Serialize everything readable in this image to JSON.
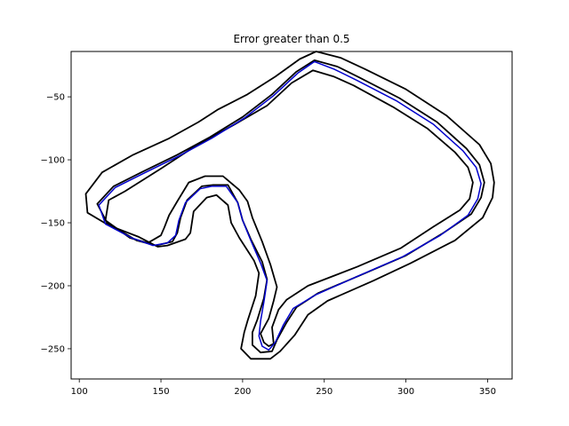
{
  "chart_data": {
    "type": "line",
    "title": "Error greater than 0.5",
    "xlabel": "",
    "ylabel": "",
    "xlim": [
      95,
      365
    ],
    "ylim": [
      -274,
      -14
    ],
    "x_ticks": [
      100,
      150,
      200,
      250,
      300,
      350
    ],
    "y_ticks": [
      -50,
      -100,
      -150,
      -200,
      -250
    ],
    "grid": false,
    "legend": "none",
    "series": [
      {
        "role": "track-outer-boundary",
        "color": "#000000",
        "closed": true,
        "points": [
          [
            245,
            -14
          ],
          [
            260,
            -19
          ],
          [
            275,
            -28
          ],
          [
            300,
            -44
          ],
          [
            325,
            -65
          ],
          [
            345,
            -88
          ],
          [
            352,
            -103
          ],
          [
            354,
            -118
          ],
          [
            353,
            -130
          ],
          [
            347,
            -146
          ],
          [
            330,
            -164
          ],
          [
            303,
            -182
          ],
          [
            280,
            -196
          ],
          [
            252,
            -212
          ],
          [
            240,
            -223
          ],
          [
            232,
            -239
          ],
          [
            223,
            -252
          ],
          [
            217,
            -258
          ],
          [
            205,
            -258
          ],
          [
            199,
            -250
          ],
          [
            201,
            -237
          ],
          [
            203,
            -228
          ],
          [
            208,
            -208
          ],
          [
            210,
            -190
          ],
          [
            207,
            -180
          ],
          [
            198,
            -162
          ],
          [
            193,
            -150
          ],
          [
            191,
            -136
          ],
          [
            184,
            -128
          ],
          [
            178,
            -130
          ],
          [
            170,
            -141
          ],
          [
            168,
            -158
          ],
          [
            165,
            -163
          ],
          [
            154,
            -168
          ],
          [
            148,
            -169
          ],
          [
            136,
            -161
          ],
          [
            118,
            -152
          ],
          [
            105,
            -142
          ],
          [
            104,
            -127
          ],
          [
            114,
            -110
          ],
          [
            133,
            -96
          ],
          [
            155,
            -83
          ],
          [
            173,
            -70
          ],
          [
            185,
            -60
          ],
          [
            203,
            -48
          ],
          [
            220,
            -34
          ],
          [
            235,
            -20
          ]
        ]
      },
      {
        "role": "track-inner-boundary",
        "color": "#000000",
        "closed": true,
        "points": [
          [
            243,
            -29
          ],
          [
            256,
            -34
          ],
          [
            268,
            -41
          ],
          [
            292,
            -58
          ],
          [
            313,
            -75
          ],
          [
            330,
            -94
          ],
          [
            338,
            -106
          ],
          [
            341,
            -118
          ],
          [
            339,
            -131
          ],
          [
            333,
            -140
          ],
          [
            317,
            -153
          ],
          [
            297,
            -170
          ],
          [
            270,
            -185
          ],
          [
            240,
            -200
          ],
          [
            227,
            -211
          ],
          [
            222,
            -219
          ],
          [
            218,
            -233
          ],
          [
            219,
            -246
          ],
          [
            216,
            -248
          ],
          [
            213,
            -245
          ],
          [
            211,
            -238
          ],
          [
            216,
            -226
          ],
          [
            219,
            -212
          ],
          [
            221,
            -201
          ],
          [
            217,
            -183
          ],
          [
            212,
            -165
          ],
          [
            206,
            -146
          ],
          [
            203,
            -133
          ],
          [
            198,
            -124
          ],
          [
            188,
            -113
          ],
          [
            177,
            -113
          ],
          [
            167,
            -118
          ],
          [
            160,
            -133
          ],
          [
            155,
            -144
          ],
          [
            152,
            -154
          ],
          [
            150,
            -160
          ],
          [
            142,
            -166
          ],
          [
            131,
            -162
          ],
          [
            116,
            -148
          ],
          [
            118,
            -132
          ],
          [
            128,
            -125
          ],
          [
            150,
            -107
          ],
          [
            170,
            -90
          ],
          [
            195,
            -72
          ],
          [
            215,
            -57
          ],
          [
            230,
            -39
          ]
        ]
      },
      {
        "role": "reference-line",
        "color": "#000000",
        "closed": true,
        "points": [
          [
            244,
            -21
          ],
          [
            258,
            -26
          ],
          [
            272,
            -35
          ],
          [
            296,
            -51
          ],
          [
            319,
            -70
          ],
          [
            337,
            -91
          ],
          [
            345,
            -104
          ],
          [
            348,
            -118
          ],
          [
            346,
            -130
          ],
          [
            340,
            -143
          ],
          [
            323,
            -158
          ],
          [
            300,
            -176
          ],
          [
            275,
            -190
          ],
          [
            246,
            -206
          ],
          [
            233,
            -217
          ],
          [
            227,
            -229
          ],
          [
            221,
            -243
          ],
          [
            218,
            -252
          ],
          [
            211,
            -253
          ],
          [
            206,
            -247
          ],
          [
            206,
            -237
          ],
          [
            209,
            -227
          ],
          [
            213,
            -210
          ],
          [
            215,
            -195
          ],
          [
            212,
            -181
          ],
          [
            205,
            -163
          ],
          [
            200,
            -148
          ],
          [
            197,
            -134
          ],
          [
            191,
            -120
          ],
          [
            182,
            -120
          ],
          [
            175,
            -121
          ],
          [
            166,
            -132
          ],
          [
            162,
            -146
          ],
          [
            160,
            -158
          ],
          [
            157,
            -165
          ],
          [
            147,
            -168
          ],
          [
            135,
            -164
          ],
          [
            117,
            -150
          ],
          [
            111,
            -135
          ],
          [
            121,
            -121
          ],
          [
            138,
            -110
          ],
          [
            160,
            -96
          ],
          [
            180,
            -82
          ],
          [
            200,
            -66
          ],
          [
            218,
            -48
          ],
          [
            233,
            -30
          ]
        ]
      },
      {
        "role": "driven-path",
        "color": "#0000cc",
        "closed": true,
        "points": [
          [
            244,
            -22
          ],
          [
            256,
            -28
          ],
          [
            270,
            -37
          ],
          [
            294,
            -53
          ],
          [
            317,
            -72
          ],
          [
            335,
            -93
          ],
          [
            343,
            -106
          ],
          [
            346,
            -119
          ],
          [
            344,
            -131
          ],
          [
            338,
            -144
          ],
          [
            321,
            -160
          ],
          [
            298,
            -177
          ],
          [
            273,
            -191
          ],
          [
            245,
            -207
          ],
          [
            231,
            -218
          ],
          [
            225,
            -231
          ],
          [
            220,
            -245
          ],
          [
            216,
            -251
          ],
          [
            212,
            -248
          ],
          [
            210,
            -240
          ],
          [
            211,
            -228
          ],
          [
            213,
            -213
          ],
          [
            215,
            -196
          ],
          [
            211,
            -182
          ],
          [
            205,
            -164
          ],
          [
            200,
            -148
          ],
          [
            197,
            -134
          ],
          [
            190,
            -121
          ],
          [
            181,
            -121
          ],
          [
            174,
            -123
          ],
          [
            165,
            -134
          ],
          [
            161,
            -148
          ],
          [
            159,
            -160
          ],
          [
            154,
            -166
          ],
          [
            145,
            -168
          ],
          [
            132,
            -162
          ],
          [
            116,
            -151
          ],
          [
            112,
            -136
          ],
          [
            122,
            -122
          ],
          [
            139,
            -111
          ],
          [
            161,
            -97
          ],
          [
            181,
            -83
          ],
          [
            201,
            -67
          ],
          [
            219,
            -49
          ],
          [
            234,
            -31
          ]
        ]
      }
    ]
  }
}
